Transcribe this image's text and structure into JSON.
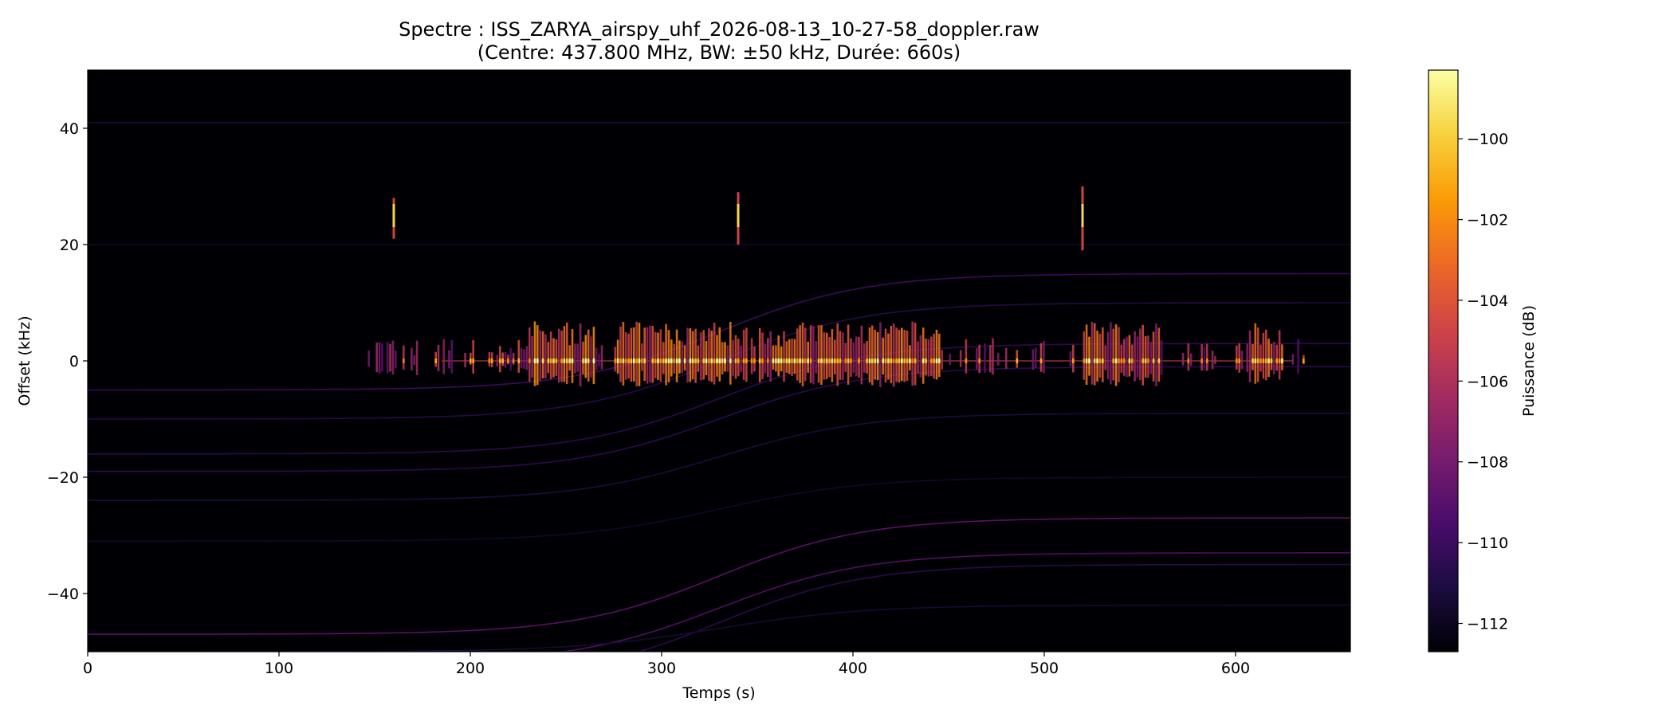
{
  "chart_data": {
    "type": "heatmap",
    "title": "Spectre : ISS_ZARYA_airspy_uhf_2026-08-13_10-27-58_doppler.raw",
    "subtitle": "(Centre: 437.800 MHz, BW: ±50 kHz, Durée: 660s)",
    "xlabel": "Temps (s)",
    "ylabel": "Offset (kHz)",
    "xlim": [
      0,
      660
    ],
    "ylim": [
      -50,
      50
    ],
    "xticks": [
      "0",
      "100",
      "200",
      "300",
      "400",
      "500",
      "600"
    ],
    "yticks": [
      "−40",
      "−20",
      "0",
      "20",
      "40"
    ],
    "colorbar": {
      "label": "Puissance (dB)",
      "range": [
        -112.7,
        -98.3
      ],
      "ticks": [
        "−112",
        "−110",
        "−108",
        "−106",
        "−104",
        "−102",
        "−100"
      ],
      "colormap": "inferno",
      "colors": [
        "#000004",
        "#1b0c41",
        "#4a0c6b",
        "#781c6d",
        "#a52c60",
        "#cf4446",
        "#ed6925",
        "#fb9b06",
        "#f7d13d",
        "#fcffa4"
      ]
    },
    "signal": {
      "center_offset_khz": 0,
      "bursts_start_s": 145,
      "bursts_end_s": 635,
      "dense_regions_s": [
        [
          230,
          265
        ],
        [
          275,
          345
        ],
        [
          350,
          445
        ],
        [
          520,
          560
        ],
        [
          605,
          625
        ]
      ]
    },
    "spikes": [
      {
        "t": 160,
        "from_khz": 21,
        "to_khz": 28
      },
      {
        "t": 340,
        "from_khz": 20,
        "to_khz": 29
      },
      {
        "t": 520,
        "from_khz": 19,
        "to_khz": 30
      }
    ],
    "doppler_traces": [
      {
        "start_khz": 41,
        "end_khz": 41,
        "intensity": 0.12
      },
      {
        "start_khz": 20,
        "end_khz": 20,
        "intensity": 0.08
      },
      {
        "start_khz": -5,
        "end_khz": 15,
        "intensity": 0.2
      },
      {
        "start_khz": -10,
        "end_khz": 10,
        "intensity": 0.14
      },
      {
        "start_khz": -16,
        "end_khz": 3,
        "intensity": 0.16
      },
      {
        "start_khz": -19,
        "end_khz": -1,
        "intensity": 0.16
      },
      {
        "start_khz": -24,
        "end_khz": -9,
        "intensity": 0.12
      },
      {
        "start_khz": -31,
        "end_khz": -20,
        "intensity": 0.08
      },
      {
        "start_khz": -47,
        "end_khz": -27,
        "intensity": 0.28
      },
      {
        "start_khz": -52,
        "end_khz": -33,
        "intensity": 0.26
      },
      {
        "start_khz": -55,
        "end_khz": -35,
        "intensity": 0.16
      },
      {
        "start_khz": -50,
        "end_khz": -42,
        "intensity": 0.1
      }
    ]
  }
}
